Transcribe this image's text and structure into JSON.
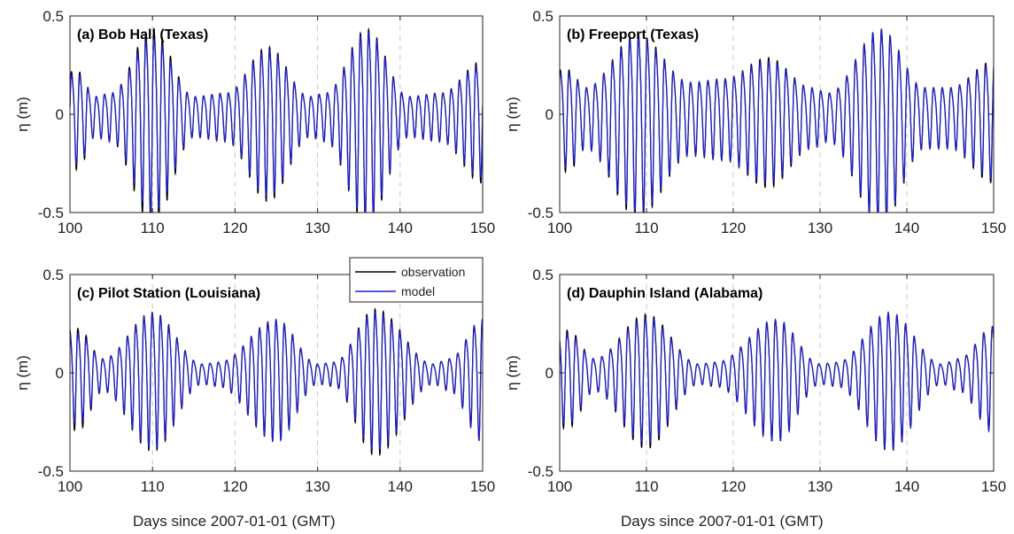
{
  "figure": {
    "x_caption": "Days since 2007-01-01 (GMT)"
  },
  "legend": {
    "entries": [
      {
        "label": "observation",
        "color": "#000000"
      },
      {
        "label": "model",
        "color": "#1f1fd0"
      }
    ]
  },
  "chart_data": [
    {
      "type": "line",
      "title": "(a) Bob Hall (Texas)",
      "ylabel": "η (m)",
      "xlim": [
        100,
        150
      ],
      "ylim": [
        -0.5,
        0.5
      ],
      "xticks": [
        "100",
        "110",
        "120",
        "130",
        "140",
        "150"
      ],
      "yticks": [
        "-0.5",
        "0",
        "0.5"
      ],
      "dashed_gridlines_x": [
        110,
        120,
        130,
        140
      ],
      "series": [
        {
          "name": "observation",
          "color": "#000000",
          "envelope_peaks": [
            [
              101,
              0.24
            ],
            [
              103,
              0.1
            ],
            [
              105,
              0.12
            ],
            [
              110,
              0.48
            ],
            [
              115,
              0.1
            ],
            [
              119,
              0.12
            ],
            [
              124,
              0.38
            ],
            [
              129,
              0.1
            ],
            [
              131,
              0.12
            ],
            [
              136,
              0.48
            ],
            [
              141,
              0.1
            ],
            [
              145,
              0.12
            ],
            [
              150,
              0.3
            ]
          ]
        },
        {
          "name": "model",
          "color": "#1f1fd0",
          "envelope_peaks": [
            [
              101,
              0.22
            ],
            [
              103,
              0.1
            ],
            [
              105,
              0.12
            ],
            [
              110,
              0.43
            ],
            [
              115,
              0.1
            ],
            [
              119,
              0.12
            ],
            [
              124,
              0.36
            ],
            [
              129,
              0.1
            ],
            [
              131,
              0.12
            ],
            [
              136,
              0.46
            ],
            [
              141,
              0.1
            ],
            [
              145,
              0.12
            ],
            [
              150,
              0.28
            ]
          ]
        }
      ]
    },
    {
      "type": "line",
      "title": "(b) Freeport (Texas)",
      "ylabel": "η (m)",
      "xlim": [
        100,
        150
      ],
      "ylim": [
        -0.5,
        0.5
      ],
      "xticks": [
        "100",
        "110",
        "120",
        "130",
        "140",
        "150"
      ],
      "yticks": [
        "-0.5",
        "0",
        "0.5"
      ],
      "dashed_gridlines_x": [
        110,
        120,
        130,
        140
      ],
      "series": [
        {
          "name": "observation",
          "color": "#000000",
          "envelope_peaks": [
            [
              101,
              0.25
            ],
            [
              103,
              0.15
            ],
            [
              109,
              0.45
            ],
            [
              115,
              0.18
            ],
            [
              119,
              0.2
            ],
            [
              124,
              0.32
            ],
            [
              129,
              0.15
            ],
            [
              131,
              0.12
            ],
            [
              137,
              0.48
            ],
            [
              142,
              0.15
            ],
            [
              145,
              0.15
            ],
            [
              150,
              0.3
            ]
          ]
        },
        {
          "name": "model",
          "color": "#1f1fd0",
          "envelope_peaks": [
            [
              101,
              0.23
            ],
            [
              103,
              0.15
            ],
            [
              109,
              0.43
            ],
            [
              115,
              0.18
            ],
            [
              119,
              0.2
            ],
            [
              124,
              0.3
            ],
            [
              129,
              0.15
            ],
            [
              131,
              0.12
            ],
            [
              137,
              0.47
            ],
            [
              142,
              0.15
            ],
            [
              145,
              0.15
            ],
            [
              150,
              0.28
            ]
          ]
        }
      ]
    },
    {
      "type": "line",
      "title": "(c) Pilot Station (Louisiana)",
      "ylabel": "η (m)",
      "xlim": [
        100,
        150
      ],
      "ylim": [
        -0.5,
        0.5
      ],
      "xticks": [
        "100",
        "110",
        "120",
        "130",
        "140",
        "150"
      ],
      "yticks": [
        "-0.5",
        "0",
        "0.5"
      ],
      "dashed_gridlines_x": [
        110,
        120,
        130,
        140
      ],
      "series": [
        {
          "name": "observation",
          "color": "#000000",
          "envelope_peaks": [
            [
              101,
              0.25
            ],
            [
              104,
              0.08
            ],
            [
              110,
              0.34
            ],
            [
              116,
              0.05
            ],
            [
              118,
              0.06
            ],
            [
              125,
              0.3
            ],
            [
              130,
              0.05
            ],
            [
              132,
              0.06
            ],
            [
              137,
              0.36
            ],
            [
              144,
              0.05
            ],
            [
              146,
              0.08
            ],
            [
              150,
              0.3
            ]
          ]
        },
        {
          "name": "model",
          "color": "#1f1fd0",
          "envelope_peaks": [
            [
              101,
              0.22
            ],
            [
              104,
              0.08
            ],
            [
              110,
              0.33
            ],
            [
              116,
              0.05
            ],
            [
              118,
              0.06
            ],
            [
              125,
              0.3
            ],
            [
              130,
              0.05
            ],
            [
              132,
              0.06
            ],
            [
              137,
              0.34
            ],
            [
              144,
              0.05
            ],
            [
              146,
              0.08
            ],
            [
              150,
              0.3
            ]
          ]
        }
      ]
    },
    {
      "type": "line",
      "title": "(d) Dauphin Island (Alabama)",
      "ylabel": "η (m)",
      "xlim": [
        100,
        150
      ],
      "ylim": [
        -0.5,
        0.5
      ],
      "xticks": [
        "100",
        "110",
        "120",
        "130",
        "140",
        "150"
      ],
      "yticks": [
        "-0.5",
        "0",
        "0.5"
      ],
      "dashed_gridlines_x": [
        110,
        120,
        130,
        140
      ],
      "series": [
        {
          "name": "observation",
          "color": "#000000",
          "envelope_peaks": [
            [
              101,
              0.24
            ],
            [
              104,
              0.08
            ],
            [
              110,
              0.33
            ],
            [
              116,
              0.05
            ],
            [
              118,
              0.06
            ],
            [
              125,
              0.3
            ],
            [
              130,
              0.05
            ],
            [
              132,
              0.06
            ],
            [
              138,
              0.34
            ],
            [
              144,
              0.05
            ],
            [
              146,
              0.08
            ],
            [
              150,
              0.26
            ]
          ]
        },
        {
          "name": "model",
          "color": "#1f1fd0",
          "envelope_peaks": [
            [
              101,
              0.22
            ],
            [
              104,
              0.08
            ],
            [
              110,
              0.31
            ],
            [
              116,
              0.05
            ],
            [
              118,
              0.06
            ],
            [
              125,
              0.3
            ],
            [
              130,
              0.05
            ],
            [
              132,
              0.06
            ],
            [
              138,
              0.34
            ],
            [
              144,
              0.05
            ],
            [
              146,
              0.08
            ],
            [
              150,
              0.26
            ]
          ]
        }
      ]
    }
  ]
}
